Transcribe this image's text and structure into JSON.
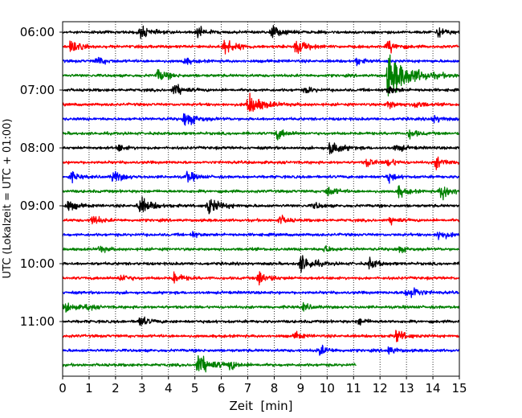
{
  "chart_data": {
    "type": "line",
    "title": "",
    "xlabel": "Zeit  [min]",
    "ylabel": "UTC (Lokalzeit = UTC + 01:00)",
    "xlim": [
      0,
      15
    ],
    "x_ticks": [
      "0",
      "1",
      "2",
      "3",
      "4",
      "5",
      "6",
      "7",
      "8",
      "9",
      "10",
      "11",
      "12",
      "13",
      "14",
      "15"
    ],
    "y_tick_labels": [
      {
        "time": "06:00",
        "row": 0
      },
      {
        "time": "07:00",
        "row": 4
      },
      {
        "time": "08:00",
        "row": 8
      },
      {
        "time": "09:00",
        "row": 12
      },
      {
        "time": "10:00",
        "row": 16
      },
      {
        "time": "11:00",
        "row": 20
      }
    ],
    "grid": "vertical dotted at each minute",
    "rows_per_hour": 4,
    "minutes_per_row": 15,
    "trace_colors": [
      "#000000",
      "#ff0000",
      "#0000ff",
      "#008000"
    ],
    "traces": [
      {
        "start": "06:00",
        "color": "#000000",
        "events": [
          [
            2.9,
            0.7
          ],
          [
            5.1,
            0.6
          ],
          [
            7.9,
            0.7
          ],
          [
            14.2,
            0.6
          ]
        ]
      },
      {
        "start": "06:15",
        "color": "#ff0000",
        "events": [
          [
            0.3,
            0.7
          ],
          [
            6.1,
            0.9
          ],
          [
            8.8,
            0.9
          ],
          [
            12.3,
            0.7
          ]
        ]
      },
      {
        "start": "06:30",
        "color": "#0000ff",
        "events": [
          [
            1.3,
            0.5
          ],
          [
            4.6,
            0.4
          ],
          [
            11.1,
            0.4
          ]
        ]
      },
      {
        "start": "06:45",
        "color": "#008000",
        "events": [
          [
            3.6,
            0.7
          ],
          [
            12.3,
            2.4
          ]
        ]
      },
      {
        "start": "07:00",
        "color": "#000000",
        "events": [
          [
            4.2,
            0.7
          ],
          [
            9.2,
            0.4
          ],
          [
            12.3,
            0.5
          ]
        ]
      },
      {
        "start": "07:15",
        "color": "#ff0000",
        "events": [
          [
            7.0,
            1.3
          ],
          [
            12.3,
            0.5
          ],
          [
            13.3,
            0.5
          ]
        ]
      },
      {
        "start": "07:30",
        "color": "#0000ff",
        "events": [
          [
            4.6,
            0.9
          ],
          [
            14.0,
            0.5
          ]
        ]
      },
      {
        "start": "07:45",
        "color": "#008000",
        "events": [
          [
            8.1,
            0.6
          ],
          [
            13.1,
            0.5
          ]
        ]
      },
      {
        "start": "08:00",
        "color": "#000000",
        "events": [
          [
            2.1,
            0.4
          ],
          [
            10.1,
            0.9
          ],
          [
            12.6,
            0.5
          ]
        ]
      },
      {
        "start": "08:15",
        "color": "#ff0000",
        "events": [
          [
            11.5,
            0.5
          ],
          [
            12.3,
            0.5
          ],
          [
            14.1,
            0.7
          ]
        ]
      },
      {
        "start": "08:30",
        "color": "#0000ff",
        "events": [
          [
            0.3,
            0.5
          ],
          [
            1.9,
            0.7
          ],
          [
            4.7,
            0.6
          ],
          [
            12.3,
            0.5
          ]
        ]
      },
      {
        "start": "08:45",
        "color": "#008000",
        "events": [
          [
            10.0,
            0.6
          ],
          [
            12.7,
            0.6
          ],
          [
            14.3,
            0.9
          ]
        ]
      },
      {
        "start": "09:00",
        "color": "#000000",
        "events": [
          [
            0.2,
            0.6
          ],
          [
            2.9,
            1.0
          ],
          [
            5.5,
            1.0
          ],
          [
            9.5,
            0.4
          ]
        ]
      },
      {
        "start": "09:15",
        "color": "#ff0000",
        "events": [
          [
            1.1,
            0.6
          ],
          [
            8.2,
            0.5
          ],
          [
            12.4,
            0.4
          ]
        ]
      },
      {
        "start": "09:30",
        "color": "#0000ff",
        "events": [
          [
            4.9,
            0.3
          ],
          [
            14.2,
            0.6
          ]
        ]
      },
      {
        "start": "09:45",
        "color": "#008000",
        "events": [
          [
            1.4,
            0.4
          ],
          [
            9.9,
            0.4
          ],
          [
            12.7,
            0.4
          ]
        ]
      },
      {
        "start": "10:00",
        "color": "#000000",
        "events": [
          [
            9.0,
            1.0
          ],
          [
            11.6,
            0.6
          ]
        ]
      },
      {
        "start": "10:15",
        "color": "#ff0000",
        "events": [
          [
            2.2,
            0.5
          ],
          [
            4.2,
            0.6
          ],
          [
            7.4,
            0.8
          ]
        ]
      },
      {
        "start": "10:30",
        "color": "#0000ff",
        "events": [
          [
            12.9,
            0.5
          ],
          [
            13.2,
            0.6
          ]
        ]
      },
      {
        "start": "10:45",
        "color": "#008000",
        "events": [
          [
            0.1,
            0.6
          ],
          [
            0.9,
            0.4
          ],
          [
            9.1,
            0.4
          ]
        ]
      },
      {
        "start": "11:00",
        "color": "#000000",
        "events": [
          [
            2.9,
            0.6
          ],
          [
            11.2,
            0.4
          ]
        ]
      },
      {
        "start": "11:15",
        "color": "#ff0000",
        "events": [
          [
            12.6,
            0.7
          ],
          [
            8.8,
            0.4
          ]
        ]
      },
      {
        "start": "11:30",
        "color": "#0000ff",
        "events": [
          [
            9.7,
            0.6
          ],
          [
            12.3,
            0.5
          ]
        ]
      },
      {
        "start": "11:45",
        "color": "#008000",
        "end_minute": 11.1,
        "events": [
          [
            5.1,
            1.2
          ],
          [
            6.3,
            0.5
          ]
        ]
      }
    ]
  }
}
